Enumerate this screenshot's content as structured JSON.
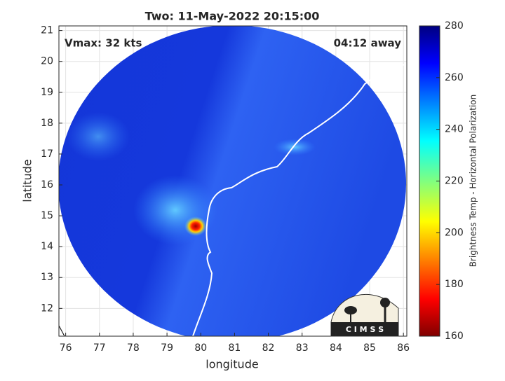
{
  "chart_data": {
    "type": "heatmap",
    "title": "Two: 11-May-2022 20:15:00",
    "annotations": [
      "Vmax: 32 kts",
      "04:12 away"
    ],
    "x_label": "longitude",
    "y_label": "latitude",
    "xlim": [
      75.8,
      86.1
    ],
    "ylim": [
      11.1,
      21.15
    ],
    "xticks": [
      76,
      77,
      78,
      79,
      80,
      81,
      82,
      83,
      84,
      85,
      86
    ],
    "yticks": [
      12,
      13,
      14,
      15,
      16,
      17,
      18,
      19,
      20,
      21
    ],
    "grid": true,
    "colorbar": {
      "label": "Brightness Temp - Horizontal Polarization",
      "clim": [
        160,
        280
      ],
      "ticks": [
        160,
        180,
        200,
        220,
        240,
        260,
        280
      ],
      "colormap": "jet"
    },
    "logo": "C I M S S"
  }
}
